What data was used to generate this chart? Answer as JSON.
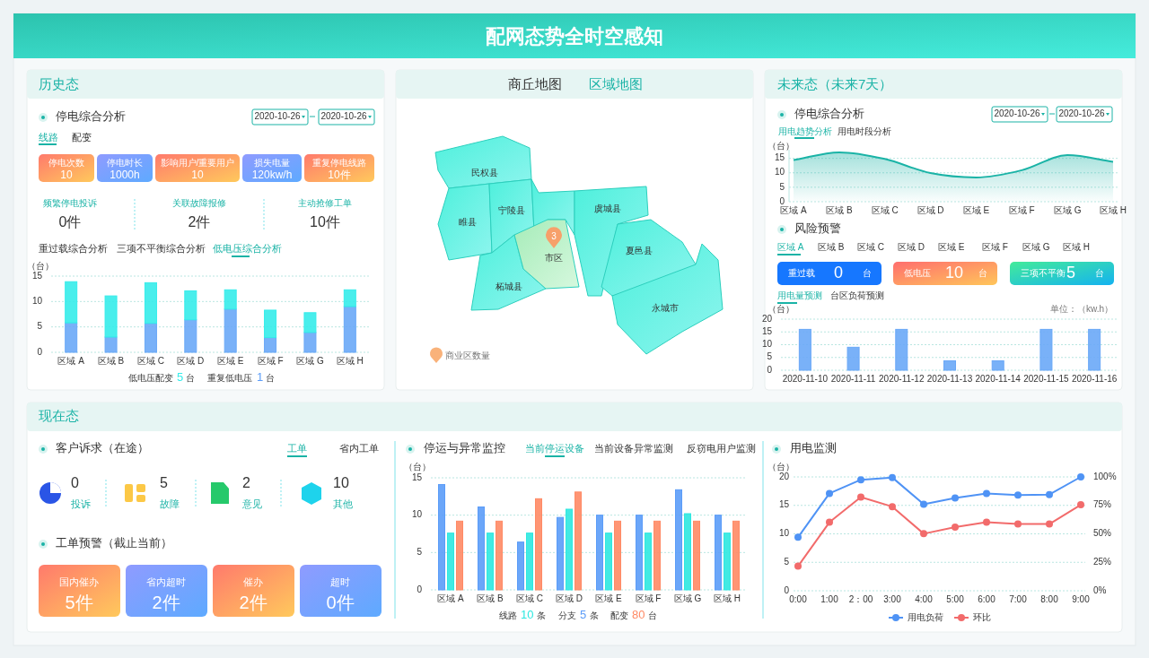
{
  "chart_data": [
    {
      "type": "other",
      "title": "配网态势全时空感知"
    },
    {
      "type": "other",
      "title": "历史态",
      "subtitle": "停电综合分析",
      "annotations": [
        "2020-10-26",
        "2020-10-26",
        "线路",
        "配变",
        "停电次数",
        "10",
        "停电时长",
        "1000h",
        "影响用户/重要用户",
        "10",
        "损失电量",
        "120kw/h",
        "重复停电线路",
        "10件",
        "频繁停电投诉",
        "0件",
        "关联故障报修",
        "2件",
        "主动抢修工单",
        "10件",
        "重过载综合分析",
        "三项不平衡综合分析",
        "低电压综合分析"
      ]
    },
    {
      "type": "bar",
      "stacked": true,
      "ylabel": "（台）",
      "categories": [
        "区域 A",
        "区域 B",
        "区域 C",
        "区域 D",
        "区域 E",
        "区域 F",
        "区域 G",
        "区域 H"
      ],
      "series": [
        {
          "color": "#6aa8f7",
          "values": [
            5.8,
            3.0,
            5.7,
            6.4,
            8.5,
            2.9,
            3.9,
            9.0
          ]
        },
        {
          "color": "#35ecea",
          "values": [
            8.1,
            8.1,
            8.0,
            5.7,
            3.8,
            5.4,
            3.9,
            3.3
          ]
        }
      ],
      "ylim": [
        0,
        15
      ],
      "yticks": [
        0,
        5,
        10,
        15
      ],
      "grid": "y",
      "annotations": [
        "低电压配变",
        "5",
        "台",
        "重复低电压",
        "1",
        "台"
      ]
    },
    {
      "type": "other",
      "title": "商丘地图",
      "subtitle": "区域地图",
      "annotations": [
        "民权县",
        "睢县",
        "宁陵县",
        "虞城县",
        "市区",
        "夏邑县",
        "柘城县",
        "永城市",
        "3",
        "商业区数量"
      ]
    },
    {
      "type": "other",
      "title": "未来态（未来7天）",
      "subtitle": "停电综合分析",
      "annotations": [
        "2020-10-26",
        "2020-10-26",
        "用电趋势分析",
        "用电时段分析"
      ]
    },
    {
      "type": "area",
      "ylabel": "（台）",
      "categories": [
        "区域 A",
        "区域 B",
        "区域 C",
        "区域 D",
        "区域 E",
        "区域 F",
        "区域 G",
        "区域 H"
      ],
      "color": "#1ab3a6",
      "values": [
        14.4,
        17.1,
        14.8,
        9.9,
        8.4,
        10.9,
        16.1,
        13.8
      ],
      "ylim": [
        0,
        18
      ],
      "yticks": [
        0,
        5,
        10,
        15
      ],
      "grid": "y"
    },
    {
      "type": "other",
      "title": "风险预警",
      "annotations": [
        "区域 A",
        "区域 B",
        "区域 C",
        "区域 D",
        "区域 E",
        "区域 F",
        "区域 G",
        "区域 H",
        "重过载",
        "0",
        "台",
        "低电压",
        "10",
        "台",
        "三项不平衡",
        "5",
        "台",
        "用电量预测",
        "台区负荷预测"
      ]
    },
    {
      "type": "bar",
      "ylabel": "（台）",
      "categories": [
        "2020-11-10",
        "2020-11-11",
        "2020-11-12",
        "2020-11-13",
        "2020-11-14",
        "2020-11-15",
        "2020-11-16"
      ],
      "color": "#6aa8f7",
      "values": [
        16,
        9,
        16,
        3.7,
        3.7,
        16,
        16
      ],
      "ylim": [
        0,
        20
      ],
      "yticks": [
        0,
        5,
        10,
        15,
        20
      ],
      "grid": "y",
      "annotations": [
        "单位：（kw.h）"
      ]
    },
    {
      "type": "other",
      "title": "现在态",
      "subtitle": "客户诉求（在途）",
      "annotations": [
        "工单",
        "省内工单",
        "0",
        "投诉",
        "5",
        "故障",
        "2",
        "意见",
        "10",
        "其他",
        "工单预警（截止当前）",
        "国内催办",
        "5件",
        "省内超时",
        "2件",
        "催办",
        "2件",
        "超时",
        "0件"
      ]
    },
    {
      "type": "bar",
      "title": "停运与异常监控",
      "ylabel": "（台）",
      "categories": [
        "区域 A",
        "区域 B",
        "区域 C",
        "区域 D",
        "区域 E",
        "区域 F",
        "区域 G",
        "区域 H"
      ],
      "series": [
        {
          "color": "#5b9cf8",
          "values": [
            14.1,
            11.1,
            6.4,
            9.7,
            10.0,
            10.0,
            13.4,
            10.0
          ]
        },
        {
          "color": "#2ee8e0",
          "values": [
            7.6,
            7.6,
            7.6,
            10.8,
            7.6,
            7.6,
            10.2,
            7.6
          ]
        },
        {
          "color": "#ff8a65",
          "values": [
            9.2,
            9.2,
            12.2,
            13.1,
            9.2,
            9.2,
            9.2,
            9.2
          ]
        }
      ],
      "ylim": [
        0,
        15
      ],
      "yticks": [
        0,
        5,
        10,
        15
      ],
      "grid": "y",
      "annotations": [
        "当前停运设备",
        "当前设备异常监测",
        "反窃电用户监测",
        "线路",
        "10",
        "条",
        "分支",
        "5",
        "条",
        "配变",
        "80",
        "台"
      ]
    },
    {
      "type": "line",
      "title": "用电监测",
      "ylabel": "（台）",
      "categories": [
        "0:00",
        "1:00",
        "2：00",
        "3:00",
        "4:00",
        "5:00",
        "6:00",
        "7:00",
        "8:00",
        "9:00"
      ],
      "series": [
        {
          "name": "用电负荷",
          "color": "#4f93f5",
          "values": [
            9.4,
            17.1,
            19.5,
            19.9,
            15.2,
            16.3,
            17.1,
            16.8,
            16.9,
            20
          ]
        },
        {
          "name": "环比",
          "color": "#f26b6b",
          "axis": "y2",
          "values": [
            21.6,
            60.2,
            82.3,
            73.9,
            50.1,
            55.9,
            60.2,
            58.6,
            58.6,
            75.5
          ]
        }
      ],
      "ylim": [
        0,
        20
      ],
      "yticks": [
        0,
        5,
        10,
        15,
        20
      ],
      "y2lim": [
        0,
        100
      ],
      "y2ticks": [
        {
          "value": 0,
          "label": "0%"
        },
        {
          "value": 25,
          "label": "25%"
        },
        {
          "value": 50,
          "label": "50%"
        },
        {
          "value": 75,
          "label": "75%"
        },
        {
          "value": 100,
          "label": "100%"
        }
      ],
      "grid": "y",
      "legend": "bottom",
      "marker": "circle"
    }
  ]
}
